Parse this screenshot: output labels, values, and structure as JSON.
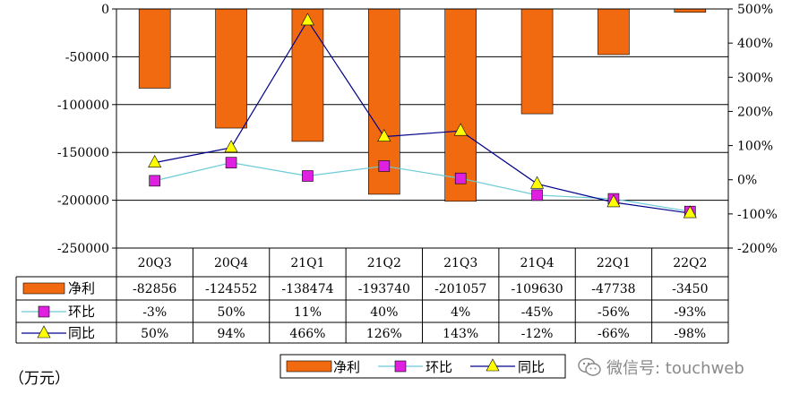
{
  "unit_label": "（万元）",
  "watermark": "微信号: touchweb",
  "colors": {
    "bar": "#f26a10",
    "huanbi": "#e020e0",
    "tongbi": "#ffff00",
    "huanbi_line": "#6ccbd6",
    "tongbi_line": "#00008b"
  },
  "chart_data": {
    "type": "bar",
    "categories": [
      "20Q3",
      "20Q4",
      "21Q1",
      "21Q2",
      "21Q3",
      "21Q4",
      "22Q1",
      "22Q2"
    ],
    "ylim": [
      -250000,
      0
    ],
    "yticks": [
      0,
      -50000,
      -100000,
      -150000,
      -200000,
      -250000
    ],
    "ytick_labels": [
      "0",
      "-50000",
      "-100000",
      "-150000",
      "-200000",
      "-250000"
    ],
    "y2lim": [
      -200,
      500
    ],
    "y2ticks": [
      500,
      400,
      300,
      200,
      100,
      0,
      -100,
      -200
    ],
    "y2tick_labels": [
      "500%",
      "400%",
      "300%",
      "200%",
      "100%",
      "0%",
      "-100%",
      "-200%"
    ],
    "series": [
      {
        "name": "净利",
        "type": "bar",
        "axis": "left",
        "values": [
          -82856,
          -124552,
          -138474,
          -193740,
          -201057,
          -109630,
          -47738,
          -3450
        ],
        "labels": [
          "-82856",
          "-124552",
          "-138474",
          "-193740",
          "-201057",
          "-109630",
          "-47738",
          "-3450"
        ]
      },
      {
        "name": "环比",
        "type": "line",
        "axis": "right",
        "marker": "square",
        "values": [
          -3,
          50,
          11,
          40,
          4,
          -45,
          -56,
          -93
        ],
        "labels": [
          "-3%",
          "50%",
          "11%",
          "40%",
          "4%",
          "-45%",
          "-56%",
          "-93%"
        ]
      },
      {
        "name": "同比",
        "type": "line",
        "axis": "right",
        "marker": "triangle",
        "values": [
          50,
          94,
          466,
          126,
          143,
          -12,
          -66,
          -98
        ],
        "labels": [
          "50%",
          "94%",
          "466%",
          "126%",
          "143%",
          "-12%",
          "-66%",
          "-98%"
        ]
      }
    ],
    "legend_position": "bottom-center"
  }
}
